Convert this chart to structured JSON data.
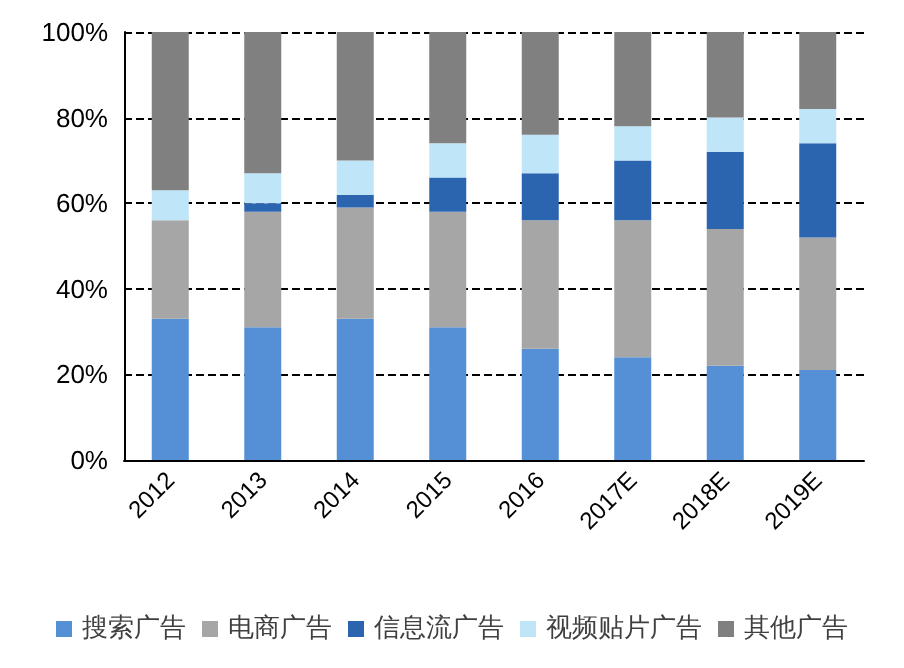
{
  "chart_data": {
    "type": "bar",
    "stacked": true,
    "categories": [
      "2012",
      "2013",
      "2014",
      "2015",
      "2016",
      "2017E",
      "2018E",
      "2019E"
    ],
    "series": [
      {
        "name": "搜索广告",
        "color": "#5590d6",
        "values": [
          33,
          31,
          33,
          31,
          26,
          24,
          22,
          21
        ]
      },
      {
        "name": "电商广告",
        "color": "#a6a6a6",
        "values": [
          23,
          27,
          26,
          27,
          30,
          32,
          32,
          31
        ]
      },
      {
        "name": "信息流广告",
        "color": "#2b65b0",
        "values": [
          0,
          2,
          3,
          8,
          11,
          14,
          18,
          22
        ]
      },
      {
        "name": "视频贴片广告",
        "color": "#bfe6f8",
        "values": [
          7,
          7,
          8,
          8,
          9,
          8,
          8,
          8
        ]
      },
      {
        "name": "其他广告",
        "color": "#808080",
        "values": [
          37,
          33,
          30,
          26,
          24,
          22,
          20,
          18
        ]
      }
    ],
    "ylim": [
      0,
      100
    ],
    "yticks": [
      {
        "value": 0,
        "label": "0%"
      },
      {
        "value": 20,
        "label": "20%"
      },
      {
        "value": 40,
        "label": "40%"
      },
      {
        "value": 60,
        "label": "60%"
      },
      {
        "value": 80,
        "label": "80%"
      },
      {
        "value": 100,
        "label": "100%"
      }
    ],
    "grid": "y",
    "legend": "bottom",
    "line_style": "dashed"
  }
}
